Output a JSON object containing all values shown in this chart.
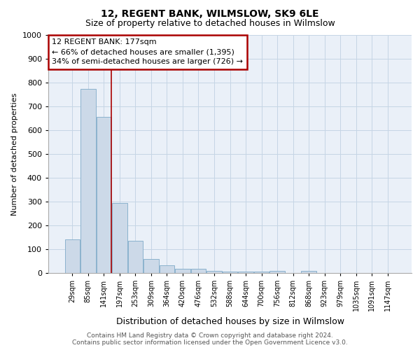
{
  "title": "12, REGENT BANK, WILMSLOW, SK9 6LE",
  "subtitle": "Size of property relative to detached houses in Wilmslow",
  "xlabel": "Distribution of detached houses by size in Wilmslow",
  "ylabel": "Number of detached properties",
  "bar_values": [
    140,
    775,
    655,
    295,
    135,
    58,
    32,
    18,
    18,
    10,
    5,
    5,
    5,
    10,
    0,
    10,
    0,
    0,
    0,
    0,
    0
  ],
  "bar_labels": [
    "29sqm",
    "85sqm",
    "141sqm",
    "197sqm",
    "253sqm",
    "309sqm",
    "364sqm",
    "420sqm",
    "476sqm",
    "532sqm",
    "588sqm",
    "644sqm",
    "700sqm",
    "756sqm",
    "812sqm",
    "868sqm",
    "923sqm",
    "979sqm",
    "1035sqm",
    "1091sqm",
    "1147sqm"
  ],
  "bar_color": "#ccd9e8",
  "bar_edge_color": "#7faac8",
  "grid_color": "#c5d5e5",
  "bg_color": "#eaf0f8",
  "vline_color": "#aa0000",
  "annotation_text": "12 REGENT BANK: 177sqm\n← 66% of detached houses are smaller (1,395)\n34% of semi-detached houses are larger (726) →",
  "annotation_box_color": "#ffffff",
  "annotation_border_color": "#aa0000",
  "ylim": [
    0,
    1000
  ],
  "yticks": [
    0,
    100,
    200,
    300,
    400,
    500,
    600,
    700,
    800,
    900,
    1000
  ],
  "footer1": "Contains HM Land Registry data © Crown copyright and database right 2024.",
  "footer2": "Contains public sector information licensed under the Open Government Licence v3.0.",
  "title_fontsize": 10,
  "subtitle_fontsize": 9,
  "tick_fontsize": 7,
  "ylabel_fontsize": 8,
  "xlabel_fontsize": 9,
  "footer_fontsize": 6.5
}
